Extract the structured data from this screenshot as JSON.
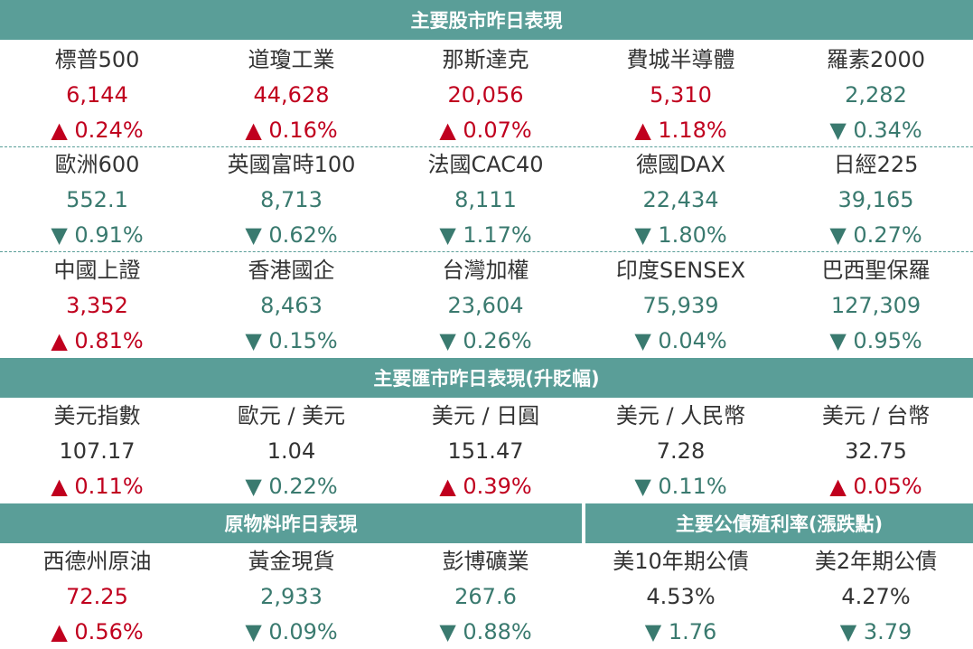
{
  "sections": {
    "stocks_title": "主要股市昨日表現",
    "fx_title": "主要匯市昨日表現(升貶幅)",
    "commodities_title": "原物料昨日表現",
    "bonds_title": "主要公債殖利率(漲跌點)"
  },
  "colors": {
    "header": "#5a9e98",
    "up": "#c0001e",
    "down": "#3a7a6f"
  },
  "stocks": [
    {
      "name": "標普500",
      "value": "6,144",
      "change": "▲ 0.24%",
      "dir": "up"
    },
    {
      "name": "道瓊工業",
      "value": "44,628",
      "change": "▲ 0.16%",
      "dir": "up"
    },
    {
      "name": "那斯達克",
      "value": "20,056",
      "change": "▲ 0.07%",
      "dir": "up"
    },
    {
      "name": "費城半導體",
      "value": "5,310",
      "change": "▲ 1.18%",
      "dir": "up"
    },
    {
      "name": "羅素2000",
      "value": "2,282",
      "change": "▼ 0.34%",
      "dir": "down"
    },
    {
      "name": "歐洲600",
      "value": "552.1",
      "change": "▼ 0.91%",
      "dir": "down"
    },
    {
      "name": "英國富時100",
      "value": "8,713",
      "change": "▼ 0.62%",
      "dir": "down"
    },
    {
      "name": "法國CAC40",
      "value": "8,111",
      "change": "▼ 1.17%",
      "dir": "down"
    },
    {
      "name": "德國DAX",
      "value": "22,434",
      "change": "▼ 1.80%",
      "dir": "down"
    },
    {
      "name": "日經225",
      "value": "39,165",
      "change": "▼ 0.27%",
      "dir": "down"
    },
    {
      "name": "中國上證",
      "value": "3,352",
      "change": "▲ 0.81%",
      "dir": "up"
    },
    {
      "name": "香港國企",
      "value": "8,463",
      "change": "▼ 0.15%",
      "dir": "down"
    },
    {
      "name": "台灣加權",
      "value": "23,604",
      "change": "▼ 0.26%",
      "dir": "down"
    },
    {
      "name": "印度SENSEX",
      "value": "75,939",
      "change": "▼ 0.04%",
      "dir": "down"
    },
    {
      "name": "巴西聖保羅",
      "value": "127,309",
      "change": "▼ 0.95%",
      "dir": "down"
    }
  ],
  "fx": [
    {
      "name": "美元指數",
      "value": "107.17",
      "change": "▲ 0.11%",
      "dir": "up"
    },
    {
      "name": "歐元 / 美元",
      "value": "1.04",
      "change": "▼ 0.22%",
      "dir": "down"
    },
    {
      "name": "美元 / 日圓",
      "value": "151.47",
      "change": "▲ 0.39%",
      "dir": "up"
    },
    {
      "name": "美元 / 人民幣",
      "value": "7.28",
      "change": "▼ 0.11%",
      "dir": "down"
    },
    {
      "name": "美元 / 台幣",
      "value": "32.75",
      "change": "▲ 0.05%",
      "dir": "up"
    }
  ],
  "commodities": [
    {
      "name": "西德州原油",
      "value": "72.25",
      "change": "▲ 0.56%",
      "dir": "up"
    },
    {
      "name": "黃金現貨",
      "value": "2,933",
      "change": "▼ 0.09%",
      "dir": "down"
    },
    {
      "name": "彭博礦業",
      "value": "267.6",
      "change": "▼ 0.88%",
      "dir": "down"
    }
  ],
  "bonds": [
    {
      "name": "美10年期公債",
      "value": "4.53%",
      "change": "▼ 1.76",
      "dir": "down"
    },
    {
      "name": "美2年期公債",
      "value": "4.27%",
      "change": "▼ 3.79",
      "dir": "down"
    }
  ]
}
